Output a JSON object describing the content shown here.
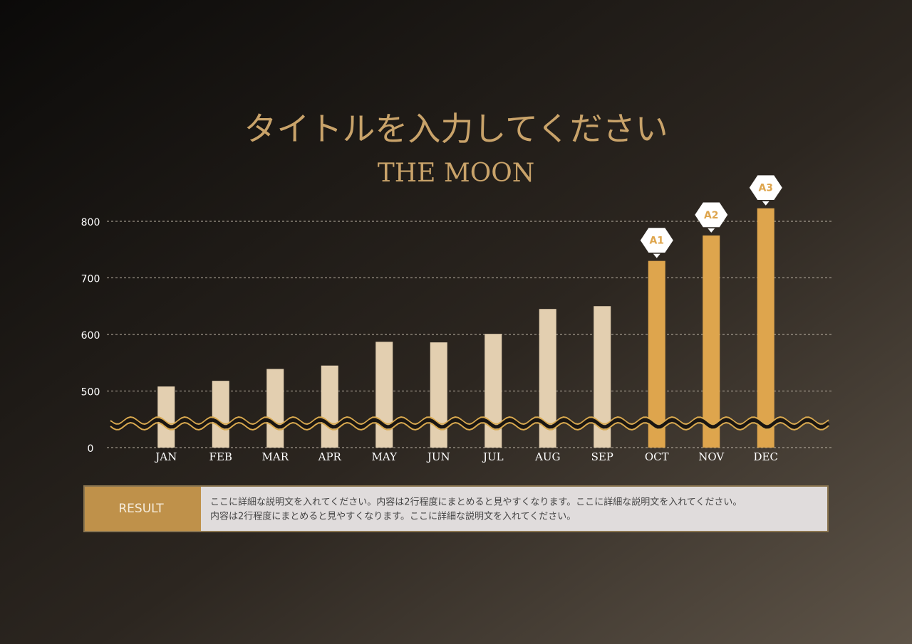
{
  "chart_data": {
    "type": "bar",
    "title": "タイトルを入力してください",
    "subtitle": "THE MOON",
    "categories": [
      "JAN",
      "FEB",
      "MAR",
      "APR",
      "MAY",
      "JUN",
      "JUL",
      "AUG",
      "SEP",
      "OCT",
      "NOV",
      "DEC"
    ],
    "values": [
      508,
      518,
      539,
      545,
      587,
      586,
      601,
      645,
      650,
      730,
      775,
      823
    ],
    "colors": [
      "#e3cfb0",
      "#e3cfb0",
      "#e3cfb0",
      "#e3cfb0",
      "#e3cfb0",
      "#e3cfb0",
      "#e3cfb0",
      "#e3cfb0",
      "#e3cfb0",
      "#dea54d",
      "#dea54d",
      "#dea54d"
    ],
    "ylim": [
      0,
      850
    ],
    "yticks": [
      0,
      500,
      600,
      700,
      800
    ],
    "grid": true,
    "broken_axis": true,
    "annotations": [
      {
        "category": "OCT",
        "label": "A1"
      },
      {
        "category": "NOV",
        "label": "A2"
      },
      {
        "category": "DEC",
        "label": "A3"
      }
    ]
  },
  "result": {
    "label": "RESULT",
    "text": [
      "ここに詳細な説明文を入れてください。内容は2行程度にまとめると見やすくなります。ここに詳細な説明文を入れてください。",
      "内容は2行程度にまとめると見やすくなります。ここに詳細な説明文を入れてください。"
    ]
  }
}
